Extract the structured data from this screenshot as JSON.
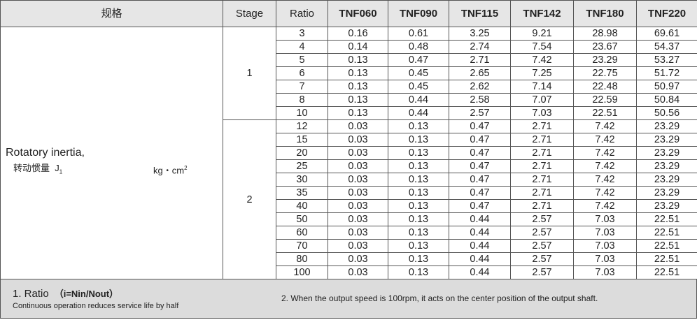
{
  "header": [
    "规格",
    "Stage",
    "Ratio",
    "TNF060",
    "TNF090",
    "TNF115",
    "TNF142",
    "TNF180",
    "TNF220"
  ],
  "label": {
    "line1": "Rotatory inertia,",
    "line2": "转动惯量",
    "symbol": "J",
    "subscript": "1",
    "unit": "kg・cm",
    "unit_sup": "2"
  },
  "groups": [
    {
      "stage": "1",
      "rows": [
        [
          "3",
          "0.16",
          "0.61",
          "3.25",
          "9.21",
          "28.98",
          "69.61"
        ],
        [
          "4",
          "0.14",
          "0.48",
          "2.74",
          "7.54",
          "23.67",
          "54.37"
        ],
        [
          "5",
          "0.13",
          "0.47",
          "2.71",
          "7.42",
          "23.29",
          "53.27"
        ],
        [
          "6",
          "0.13",
          "0.45",
          "2.65",
          "7.25",
          "22.75",
          "51.72"
        ],
        [
          "7",
          "0.13",
          "0.45",
          "2.62",
          "7.14",
          "22.48",
          "50.97"
        ],
        [
          "8",
          "0.13",
          "0.44",
          "2.58",
          "7.07",
          "22.59",
          "50.84"
        ],
        [
          "10",
          "0.13",
          "0.44",
          "2.57",
          "7.03",
          "22.51",
          "50.56"
        ]
      ]
    },
    {
      "stage": "2",
      "rows": [
        [
          "12",
          "0.03",
          "0.13",
          "0.47",
          "2.71",
          "7.42",
          "23.29"
        ],
        [
          "15",
          "0.03",
          "0.13",
          "0.47",
          "2.71",
          "7.42",
          "23.29"
        ],
        [
          "20",
          "0.03",
          "0.13",
          "0.47",
          "2.71",
          "7.42",
          "23.29"
        ],
        [
          "25",
          "0.03",
          "0.13",
          "0.47",
          "2.71",
          "7.42",
          "23.29"
        ],
        [
          "30",
          "0.03",
          "0.13",
          "0.47",
          "2.71",
          "7.42",
          "23.29"
        ],
        [
          "35",
          "0.03",
          "0.13",
          "0.47",
          "2.71",
          "7.42",
          "23.29"
        ],
        [
          "40",
          "0.03",
          "0.13",
          "0.47",
          "2.71",
          "7.42",
          "23.29"
        ],
        [
          "50",
          "0.03",
          "0.13",
          "0.44",
          "2.57",
          "7.03",
          "22.51"
        ],
        [
          "60",
          "0.03",
          "0.13",
          "0.44",
          "2.57",
          "7.03",
          "22.51"
        ],
        [
          "70",
          "0.03",
          "0.13",
          "0.44",
          "2.57",
          "7.03",
          "22.51"
        ],
        [
          "80",
          "0.03",
          "0.13",
          "0.44",
          "2.57",
          "7.03",
          "22.51"
        ],
        [
          "100",
          "0.03",
          "0.13",
          "0.44",
          "2.57",
          "7.03",
          "22.51"
        ]
      ]
    }
  ],
  "footer": {
    "note1_title": "1. Ratio",
    "note1_formula": "（i=Nin/Nout）",
    "note1_text": "Continuous operation reduces service life by half",
    "note2": "2. When the output speed is 100rpm, it acts on the center position of the output shaft."
  }
}
